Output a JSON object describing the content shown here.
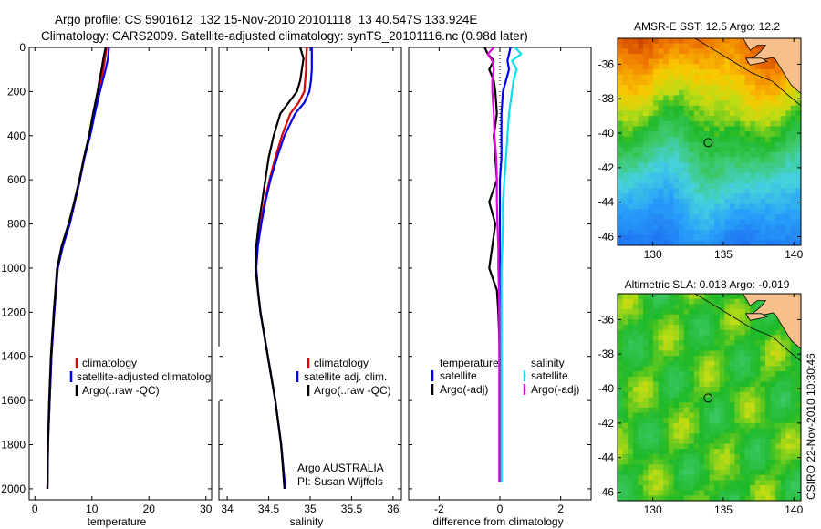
{
  "header": {
    "line1": "Argo profile: CS 5901612_132 15-Nov-2010 20101118_13 40.547S 133.924E",
    "line2": "Climatology: CARS2009. Satellite-adjusted climatology: synTS_20101116.nc (0.98d later)"
  },
  "credits": {
    "argo_line1": "Argo AUSTRALIA",
    "argo_line2": "PI: Susan Wijffels",
    "stamp": "CSIRO 22-Nov-2010 10:30:46"
  },
  "colors": {
    "climatology": "#dd0000",
    "satellite": "#0000ee",
    "argo": "#000000",
    "salinity_satellite": "#00e0ee",
    "salinity_argo": "#e000e0",
    "land": "#f7c08a"
  },
  "chart_data": [
    {
      "type": "line",
      "panel": "temperature",
      "xlabel": "temperature",
      "ylabel": "",
      "xlim": [
        -1,
        31
      ],
      "ylim": [
        2050,
        0
      ],
      "xticks": [
        "0",
        "10",
        "20",
        "30"
      ],
      "yticks": [
        "0",
        "200",
        "400",
        "600",
        "800",
        "1000",
        "1200",
        "1400",
        "1600",
        "1800",
        "2000"
      ],
      "depth": [
        0,
        50,
        100,
        150,
        200,
        300,
        400,
        500,
        600,
        700,
        800,
        900,
        1000,
        1200,
        1400,
        1600,
        1800,
        2000
      ],
      "legend": [
        "climatology",
        "satellite-adjusted climatology",
        "Argo(..raw -QC)"
      ],
      "series": [
        {
          "name": "climatology",
          "color": "#dd0000",
          "values": [
            12.6,
            12.3,
            12.0,
            11.6,
            11.2,
            10.4,
            9.6,
            8.6,
            7.9,
            7.0,
            6.1,
            4.9,
            4.0,
            3.4,
            2.9,
            2.6,
            2.3,
            2.2
          ]
        },
        {
          "name": "satellite-adjusted climatology",
          "color": "#0000ee",
          "values": [
            13.0,
            12.8,
            12.4,
            11.9,
            11.4,
            10.5,
            9.7,
            8.7,
            7.9,
            7.0,
            6.1,
            4.9,
            4.0,
            3.4,
            2.9,
            2.6,
            2.3,
            2.2
          ]
        },
        {
          "name": "Argo(..raw -QC)",
          "color": "#000000",
          "values": [
            12.4,
            12.0,
            11.7,
            11.3,
            11.0,
            10.2,
            9.5,
            8.6,
            7.8,
            6.9,
            5.9,
            4.7,
            3.9,
            3.3,
            2.8,
            2.5,
            2.3,
            2.2
          ]
        }
      ]
    },
    {
      "type": "line",
      "panel": "salinity",
      "xlabel": "salinity",
      "ylabel": "",
      "xlim": [
        33.9,
        36.1
      ],
      "ylim": [
        2050,
        0
      ],
      "xticks": [
        "34",
        "34.5",
        "35",
        "35.5",
        "36"
      ],
      "legend": [
        "climatology",
        "satellite adj. clim.",
        "Argo(..raw -QC)"
      ],
      "depth": [
        0,
        50,
        100,
        150,
        200,
        250,
        300,
        400,
        500,
        600,
        700,
        800,
        900,
        1000,
        1100,
        1200,
        1400,
        1600,
        1800,
        2000
      ],
      "series": [
        {
          "name": "climatology",
          "color": "#dd0000",
          "values": [
            34.96,
            34.95,
            34.95,
            34.94,
            34.93,
            34.86,
            34.76,
            34.66,
            34.58,
            34.51,
            34.45,
            34.4,
            34.36,
            34.35,
            34.37,
            34.4,
            34.49,
            34.58,
            34.65,
            34.7
          ]
        },
        {
          "name": "satellite adj. clim.",
          "color": "#0000ee",
          "values": [
            35.02,
            35.02,
            35.02,
            35.01,
            34.99,
            34.93,
            34.82,
            34.69,
            34.6,
            34.52,
            34.46,
            34.41,
            34.37,
            34.35,
            34.37,
            34.4,
            34.49,
            34.58,
            34.65,
            34.7
          ]
        },
        {
          "name": "Argo(..raw -QC)",
          "color": "#000000",
          "values": [
            34.88,
            34.92,
            34.9,
            34.88,
            34.84,
            34.74,
            34.64,
            34.56,
            34.5,
            34.46,
            34.42,
            34.38,
            34.35,
            34.34,
            34.37,
            34.4,
            34.49,
            34.58,
            34.65,
            34.69
          ]
        }
      ]
    },
    {
      "type": "line",
      "panel": "difference",
      "xlabel": "difference from climatology",
      "ylabel": "",
      "xlim": [
        -3,
        3
      ],
      "ylim": [
        2050,
        0
      ],
      "xticks": [
        "-2",
        "0",
        "2"
      ],
      "legend_left_title": "temperature",
      "legend_left": [
        "satellite",
        "Argo(-adj)"
      ],
      "legend_right_title": "salinity",
      "legend_right": [
        "satellite",
        "Argo(-adj)"
      ],
      "depth": [
        0,
        30,
        60,
        100,
        150,
        200,
        300,
        400,
        500,
        600,
        700,
        800,
        900,
        1000,
        1100,
        1200,
        1400,
        1600,
        1800,
        1970
      ],
      "series": [
        {
          "name": "temperature satellite",
          "color": "#0000ee",
          "values": [
            0.35,
            0.3,
            0.25,
            0.3,
            0.2,
            0.1,
            0.05,
            0.05,
            0.05,
            0.0,
            0.0,
            0.0,
            0.0,
            0.0,
            0.0,
            0.0,
            0.0,
            0.0,
            0.0,
            0.0
          ]
        },
        {
          "name": "temperature Argo(-adj)",
          "color": "#000000",
          "values": [
            -0.5,
            -0.4,
            -0.2,
            -0.35,
            -0.2,
            -0.15,
            -0.1,
            -0.2,
            -0.15,
            -0.1,
            -0.35,
            -0.15,
            -0.25,
            -0.35,
            -0.1,
            -0.05,
            0.0,
            0.0,
            0.0,
            0.0
          ]
        },
        {
          "name": "salinity satellite",
          "color": "#00e0ee",
          "values": [
            0.5,
            0.7,
            0.4,
            0.55,
            0.45,
            0.4,
            0.3,
            0.25,
            0.2,
            0.15,
            0.1,
            0.1,
            0.08,
            0.05,
            0.05,
            0.05,
            0.05,
            0.05,
            0.05,
            0.05
          ]
        },
        {
          "name": "salinity Argo(-adj)",
          "color": "#e000e0",
          "values": [
            -0.2,
            -0.4,
            -0.25,
            -0.2,
            -0.25,
            -0.25,
            -0.2,
            -0.18,
            -0.12,
            -0.1,
            -0.1,
            -0.08,
            -0.05,
            -0.05,
            -0.03,
            -0.02,
            -0.02,
            -0.02,
            -0.02,
            -0.02
          ]
        }
      ]
    },
    {
      "type": "heatmap",
      "panel": "sst_map",
      "title": "AMSR-E SST: 12.5 Argo: 12.2",
      "xlim": [
        127.5,
        140.5
      ],
      "ylim": [
        -46.5,
        -34.5
      ],
      "xticks": [
        "130",
        "135",
        "140"
      ],
      "yticks": [
        "-36",
        "-38",
        "-40",
        "-42",
        "-44",
        "-46"
      ],
      "argo_marker": {
        "lon": 133.924,
        "lat": -40.547
      }
    },
    {
      "type": "heatmap",
      "panel": "sla_map",
      "title": "Altimetric SLA: 0.018 Argo: -0.019",
      "xlim": [
        127.5,
        140.5
      ],
      "ylim": [
        -46.5,
        -34.5
      ],
      "xticks": [
        "130",
        "135",
        "140"
      ],
      "yticks": [
        "-36",
        "-38",
        "-40",
        "-42",
        "-44",
        "-46"
      ],
      "argo_marker": {
        "lon": 133.924,
        "lat": -40.547
      }
    }
  ]
}
